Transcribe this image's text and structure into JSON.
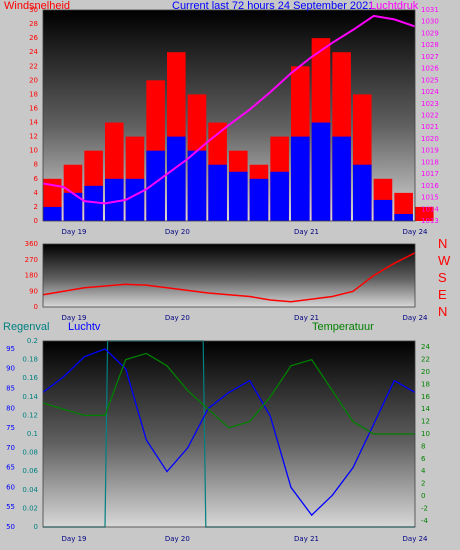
{
  "colors": {
    "background": "#c8c8c8",
    "wind": "#ff0000",
    "gust_fill": "#0000ff",
    "pressure": "#ff00ff",
    "direction": "#ff0000",
    "rain": "#0000ff",
    "humidity": "#0000ff",
    "temperature": "#008000",
    "rain_axis": "#008080",
    "lux_axis": "#000080"
  },
  "header": {
    "left_label": "Windsnelheid",
    "center_label": "Current last 72 hours 24 September 2021",
    "right_label": "Luchtdruk"
  },
  "third_header": {
    "left_label": "Regenval",
    "mid_label": "Luchtv",
    "right_label": "Temperatuur"
  },
  "direction_letters": [
    "N",
    "W",
    "S",
    "E",
    "N"
  ],
  "chart_data": [
    {
      "type": "line",
      "name": "wind_and_pressure",
      "x_ticks": [
        "Day 19",
        "Day 20",
        "Day 21",
        "Day 24"
      ],
      "y_left_ticks": [
        "0",
        "2",
        "4",
        "6",
        "8",
        "10",
        "12",
        "14",
        "16",
        "18",
        "20",
        "22",
        "24",
        "26",
        "28",
        "30"
      ],
      "y_right_ticks": [
        "1013",
        "1014",
        "1015",
        "1016",
        "1017",
        "1018",
        "1019",
        "1020",
        "1021",
        "1022",
        "1023",
        "1024",
        "1025",
        "1026",
        "1027",
        "1028",
        "1029",
        "1030",
        "1031"
      ],
      "ylim_left": [
        0,
        30
      ],
      "ylim_right": [
        1013,
        1031
      ],
      "x_hours": [
        0,
        4,
        8,
        12,
        16,
        20,
        24,
        28,
        32,
        36,
        40,
        44,
        48,
        52,
        56,
        60,
        64,
        68,
        72
      ],
      "wind_max": [
        6,
        8,
        10,
        14,
        12,
        20,
        24,
        18,
        14,
        10,
        8,
        12,
        22,
        26,
        24,
        18,
        6,
        4,
        2
      ],
      "wind_avg": [
        2,
        4,
        5,
        6,
        6,
        10,
        12,
        10,
        8,
        7,
        6,
        7,
        12,
        14,
        12,
        8,
        3,
        1,
        0
      ],
      "pressure_hours": [
        0,
        4,
        8,
        12,
        16,
        20,
        24,
        28,
        32,
        36,
        40,
        44,
        48,
        52,
        56,
        60,
        64,
        68,
        72
      ],
      "pressure": [
        1016.2,
        1015.9,
        1014.7,
        1014.5,
        1014.8,
        1015.7,
        1017.0,
        1018.3,
        1019.8,
        1021.2,
        1022.5,
        1024.0,
        1025.6,
        1027.0,
        1028.2,
        1029.3,
        1030.5,
        1030.2,
        1029.6
      ]
    },
    {
      "type": "line",
      "name": "wind_direction",
      "x_ticks": [
        "Day 19",
        "Day 20",
        "Day 21",
        "Day 24"
      ],
      "y_ticks": [
        "0",
        "90",
        "180",
        "270",
        "360"
      ],
      "ylim": [
        0,
        360
      ],
      "x_hours": [
        0,
        4,
        8,
        12,
        16,
        20,
        24,
        28,
        32,
        36,
        40,
        44,
        48,
        52,
        56,
        60,
        64,
        68,
        72
      ],
      "direction": [
        70,
        90,
        110,
        120,
        130,
        125,
        110,
        95,
        80,
        70,
        60,
        40,
        30,
        45,
        60,
        90,
        180,
        250,
        310
      ]
    },
    {
      "type": "line",
      "name": "rain_humidity_temperature",
      "x_ticks": [
        "Day 19",
        "Day 20",
        "Day 21",
        "Day 24"
      ],
      "y_humidity_ticks": [
        "50",
        "55",
        "60",
        "65",
        "70",
        "75",
        "80",
        "85",
        "90",
        "95"
      ],
      "y_rain_ticks": [
        "0",
        "0.02",
        "0.04",
        "0.06",
        "0.08",
        "0.1",
        "0.12",
        "0.14",
        "0.16",
        "0.18",
        "0.2"
      ],
      "y_temp_ticks": [
        "-4",
        "-2",
        "0",
        "2",
        "4",
        "6",
        "8",
        "10",
        "12",
        "14",
        "16",
        "18",
        "20",
        "22",
        "24"
      ],
      "ylim_humidity": [
        50,
        97
      ],
      "ylim_rain": [
        0,
        0.2
      ],
      "ylim_temp": [
        -5,
        25
      ],
      "x_hours": [
        0,
        4,
        8,
        12,
        16,
        20,
        24,
        28,
        32,
        36,
        40,
        44,
        48,
        52,
        56,
        60,
        64,
        68,
        72
      ],
      "humidity": [
        84,
        88,
        93,
        95,
        90,
        72,
        64,
        70,
        80,
        84,
        87,
        78,
        60,
        53,
        58,
        65,
        76,
        87,
        84
      ],
      "temperature": [
        15,
        14,
        13,
        13,
        22,
        23,
        21,
        17,
        14,
        11,
        12,
        16,
        21,
        22,
        17,
        12,
        10,
        10,
        10
      ],
      "rain_hours": [
        0,
        12,
        12.5,
        31,
        31.5,
        72
      ],
      "rain": [
        0,
        0,
        0.2,
        0.2,
        0,
        0
      ]
    }
  ]
}
